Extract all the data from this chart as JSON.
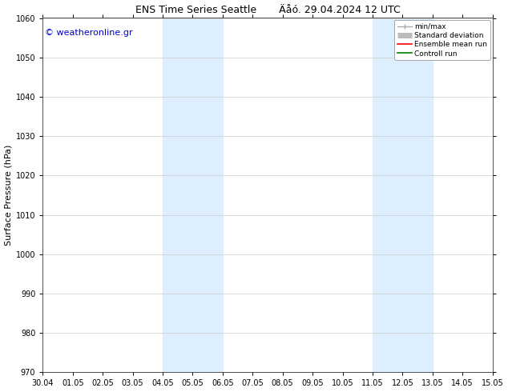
{
  "title_left": "ENS Time Series Seattle",
  "title_right": "Äåó. 29.04.2024 12 UTC",
  "ylabel": "Surface Pressure (hPa)",
  "ylim": [
    970,
    1060
  ],
  "yticks": [
    970,
    980,
    990,
    1000,
    1010,
    1020,
    1030,
    1040,
    1050,
    1060
  ],
  "xtick_labels": [
    "30.04",
    "01.05",
    "02.05",
    "03.05",
    "04.05",
    "05.05",
    "06.05",
    "07.05",
    "08.05",
    "09.05",
    "10.05",
    "11.05",
    "12.05",
    "13.05",
    "14.05",
    "15.05"
  ],
  "shaded_bands": [
    {
      "x_start": "2024-05-04",
      "x_end": "2024-05-06",
      "color": "#ddeeff"
    },
    {
      "x_start": "2024-05-11",
      "x_end": "2024-05-13",
      "color": "#ddeeff"
    }
  ],
  "watermark": "© weatheronline.gr",
  "watermark_color": "#0000cc",
  "background_color": "#ffffff",
  "axes_bg_color": "#ffffff",
  "legend_entries": [
    {
      "label": "min/max",
      "color": "#aaaaaa",
      "lw": 1.0,
      "style": "errorbar"
    },
    {
      "label": "Standard deviation",
      "color": "#bbbbbb",
      "lw": 5,
      "style": "thick"
    },
    {
      "label": "Ensemble mean run",
      "color": "#ff0000",
      "lw": 1.2,
      "style": "line"
    },
    {
      "label": "Controll run",
      "color": "#008000",
      "lw": 1.2,
      "style": "line"
    }
  ],
  "title_fontsize": 9,
  "label_fontsize": 8,
  "tick_fontsize": 7,
  "watermark_fontsize": 8
}
